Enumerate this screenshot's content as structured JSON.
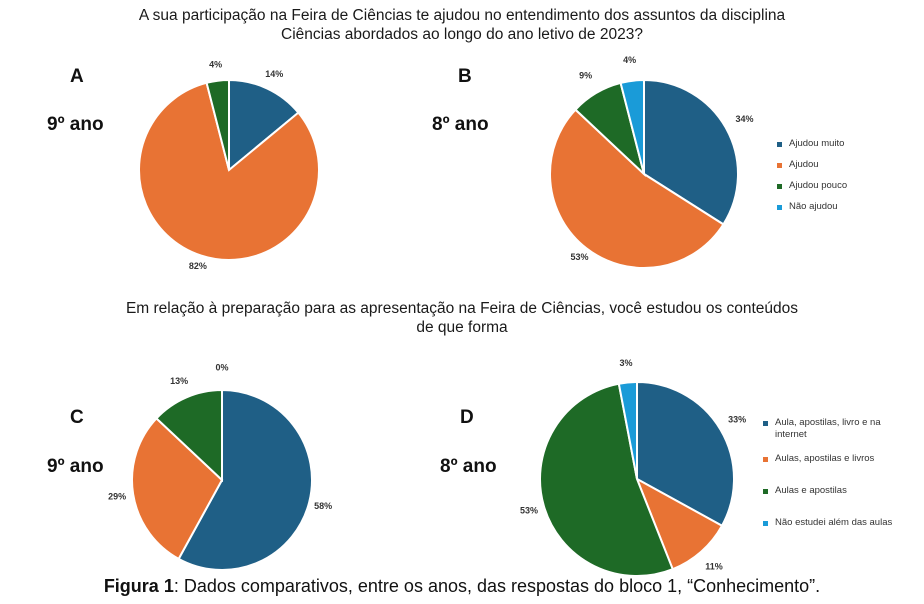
{
  "titles": {
    "top": [
      "A sua participação na Feira de Ciências te ajudou no entendimento dos assuntos da disciplina",
      "Ciências abordados ao longo do ano letivo de 2023?"
    ],
    "bottom": [
      "Em relação à preparação para as apresentação na Feira de Ciências, você estudou os conteúdos",
      "de que forma"
    ]
  },
  "caption": {
    "label": "Figura 1",
    "text": ": Dados comparativos, entre os anos, das respostas do  bloco 1, “Conhecimento”."
  },
  "colors": {
    "blue": "#1f5f86",
    "orange": "#e87334",
    "green": "#1e6a26",
    "lightblue": "#1a9bd8"
  },
  "legends": {
    "top": [
      "Ajudou muito",
      "Ajudou",
      "Ajudou pouco",
      "Não ajudou"
    ],
    "bottom": [
      "Aula, apostilas, livro e na internet",
      "Aulas, apostilas e livros",
      "Aulas e apostilas",
      "Não estudei além das aulas"
    ]
  },
  "chart_data": [
    {
      "type": "pie",
      "panel": "A",
      "subtitle": "9º ano",
      "categories": [
        "Ajudou muito",
        "Ajudou",
        "Ajudou pouco",
        "Não ajudou"
      ],
      "values": [
        14,
        82,
        4,
        0
      ],
      "labels": [
        "14%",
        "82%",
        "4%",
        ""
      ]
    },
    {
      "type": "pie",
      "panel": "B",
      "subtitle": "8º ano",
      "categories": [
        "Ajudou muito",
        "Ajudou",
        "Ajudou pouco",
        "Não ajudou"
      ],
      "values": [
        34,
        53,
        9,
        4
      ],
      "labels": [
        "34%",
        "53%",
        "9%",
        "4%"
      ]
    },
    {
      "type": "pie",
      "panel": "C",
      "subtitle": "9º ano",
      "categories": [
        "Aula, apostilas, livro e na internet",
        "Aulas, apostilas e livros",
        "Aulas e apostilas",
        "Não estudei além das aulas"
      ],
      "values": [
        58,
        29,
        13,
        0
      ],
      "labels": [
        "58%",
        "29%",
        "13%",
        "0%"
      ]
    },
    {
      "type": "pie",
      "panel": "D",
      "subtitle": "8º ano",
      "categories": [
        "Aula, apostilas, livro e na internet",
        "Aulas, apostilas e livros",
        "Aulas e apostilas",
        "Não estudei além das aulas"
      ],
      "values": [
        33,
        11,
        53,
        3
      ],
      "labels": [
        "33%",
        "11%",
        "53%",
        "3%"
      ]
    }
  ]
}
